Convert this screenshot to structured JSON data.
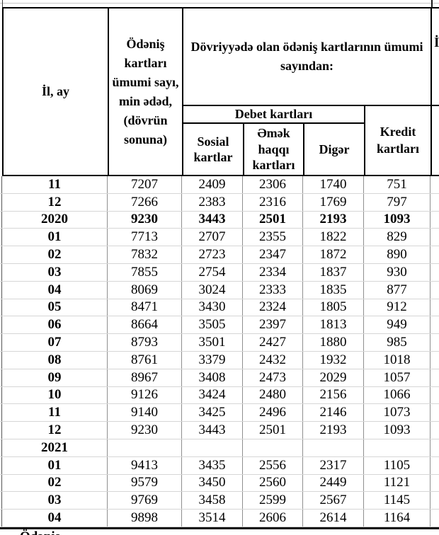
{
  "table": {
    "headers": {
      "il_ay": "İl, ay",
      "total_cards": "Ödəniş kartları ümumi sayı, min ədəd, (dövrün sonuna)",
      "in_circulation": "Dövriyyədə olan ödəniş kartlarının ümumi sayından:",
      "debit_cards": "Debet kartları",
      "social_cards": "Sosial kartlar",
      "salary_cards": "Əmək haqqı kartları",
      "other": "Digər",
      "credit_cards": "Kredit kartları"
    },
    "rows": [
      {
        "label": "11",
        "values": [
          "7207",
          "2409",
          "2306",
          "1740",
          "751"
        ],
        "bold": false
      },
      {
        "label": "12",
        "values": [
          "7266",
          "2383",
          "2316",
          "1769",
          "797"
        ],
        "bold": false
      },
      {
        "label": "2020",
        "values": [
          "9230",
          "3443",
          "2501",
          "2193",
          "1093"
        ],
        "bold": true
      },
      {
        "label": "01",
        "values": [
          "7713",
          "2707",
          "2355",
          "1822",
          "829"
        ],
        "bold": false
      },
      {
        "label": "02",
        "values": [
          "7832",
          "2723",
          "2347",
          "1872",
          "890"
        ],
        "bold": false
      },
      {
        "label": "03",
        "values": [
          "7855",
          "2754",
          "2334",
          "1837",
          "930"
        ],
        "bold": false
      },
      {
        "label": "04",
        "values": [
          "8069",
          "3024",
          "2333",
          "1835",
          "877"
        ],
        "bold": false
      },
      {
        "label": "05",
        "values": [
          "8471",
          "3430",
          "2324",
          "1805",
          "912"
        ],
        "bold": false
      },
      {
        "label": "06",
        "values": [
          "8664",
          "3505",
          "2397",
          "1813",
          "949"
        ],
        "bold": false
      },
      {
        "label": "07",
        "values": [
          "8793",
          "3501",
          "2427",
          "1880",
          "985"
        ],
        "bold": false
      },
      {
        "label": "08",
        "values": [
          "8761",
          "3379",
          "2432",
          "1932",
          "1018"
        ],
        "bold": false
      },
      {
        "label": "09",
        "values": [
          "8967",
          "3408",
          "2473",
          "2029",
          "1057"
        ],
        "bold": false
      },
      {
        "label": "10",
        "values": [
          "9126",
          "3424",
          "2480",
          "2156",
          "1066"
        ],
        "bold": false
      },
      {
        "label": "11",
        "values": [
          "9140",
          "3425",
          "2496",
          "2146",
          "1073"
        ],
        "bold": false
      },
      {
        "label": "12",
        "values": [
          "9230",
          "3443",
          "2501",
          "2193",
          "1093"
        ],
        "bold": false
      },
      {
        "label": "2021",
        "values": [
          "",
          "",
          "",
          "",
          ""
        ],
        "bold": true
      },
      {
        "label": "01",
        "values": [
          "9413",
          "3435",
          "2556",
          "2317",
          "1105"
        ],
        "bold": false
      },
      {
        "label": "02",
        "values": [
          "9579",
          "3450",
          "2560",
          "2449",
          "1121"
        ],
        "bold": false
      },
      {
        "label": "03",
        "values": [
          "9769",
          "3458",
          "2599",
          "2567",
          "1145"
        ],
        "bold": false
      },
      {
        "label": "04",
        "values": [
          "9898",
          "3514",
          "2606",
          "2614",
          "1164"
        ],
        "bold": false
      }
    ]
  },
  "fragments": {
    "footnote_fragment": "Ödəniş",
    "right_column_fragment": "İ"
  },
  "colors": {
    "header_border": "#000000",
    "grid_vertical": "#8f8f8f",
    "grid_horizontal": "#d6d6d6",
    "text": "#000000",
    "background": "#ffffff"
  }
}
